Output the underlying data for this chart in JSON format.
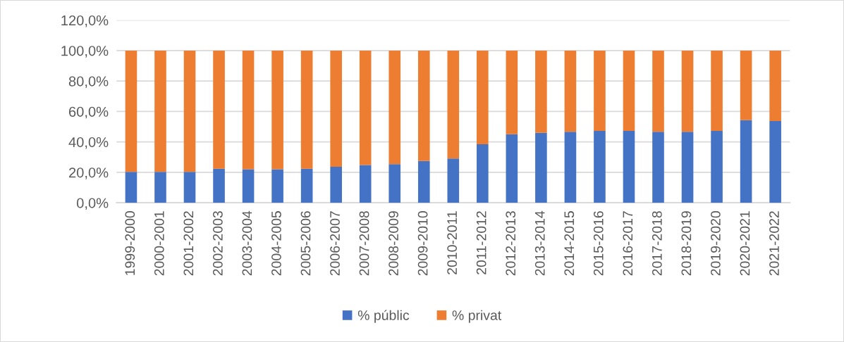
{
  "chart_data": {
    "type": "bar",
    "stacked": true,
    "categories": [
      "1999-2000",
      "2000-2001",
      "2001-2002",
      "2002-2003",
      "2003-2004",
      "2004-2005",
      "2005-2006",
      "2006-2007",
      "2007-2008",
      "2008-2009",
      "2009-2010",
      "2010-2011",
      "2011-2012",
      "2012-2013",
      "2013-2014",
      "2014-2015",
      "2015-2016",
      "2016-2017",
      "2017-2018",
      "2018-2019",
      "2019-2020",
      "2020-2021",
      "2021-2022"
    ],
    "series": [
      {
        "name": "% públic",
        "color": "#4472c4",
        "values": [
          20.3,
          20.3,
          20.3,
          22.4,
          22.0,
          22.0,
          22.4,
          23.7,
          24.8,
          25.4,
          27.5,
          29.1,
          38.5,
          45.1,
          46.0,
          46.7,
          47.2,
          47.2,
          46.7,
          46.7,
          47.2,
          54.3,
          53.7
        ]
      },
      {
        "name": "% privat",
        "color": "#ed7d31",
        "values": [
          79.7,
          79.7,
          79.7,
          77.6,
          78.0,
          78.0,
          77.6,
          76.3,
          75.2,
          74.6,
          72.5,
          70.9,
          61.5,
          54.9,
          54.0,
          53.3,
          52.8,
          52.8,
          53.3,
          53.3,
          52.8,
          45.7,
          46.3
        ]
      }
    ],
    "ylim": [
      0,
      120
    ],
    "yticks": [
      {
        "value": 0,
        "label": "0,0%"
      },
      {
        "value": 20,
        "label": "20,0%"
      },
      {
        "value": 40,
        "label": "40,0%"
      },
      {
        "value": 60,
        "label": "60,0%"
      },
      {
        "value": 80,
        "label": "80,0%"
      },
      {
        "value": 100,
        "label": "100,0%"
      },
      {
        "value": 120,
        "label": "120,0%"
      }
    ],
    "grid": "y",
    "legend": "bottom"
  }
}
